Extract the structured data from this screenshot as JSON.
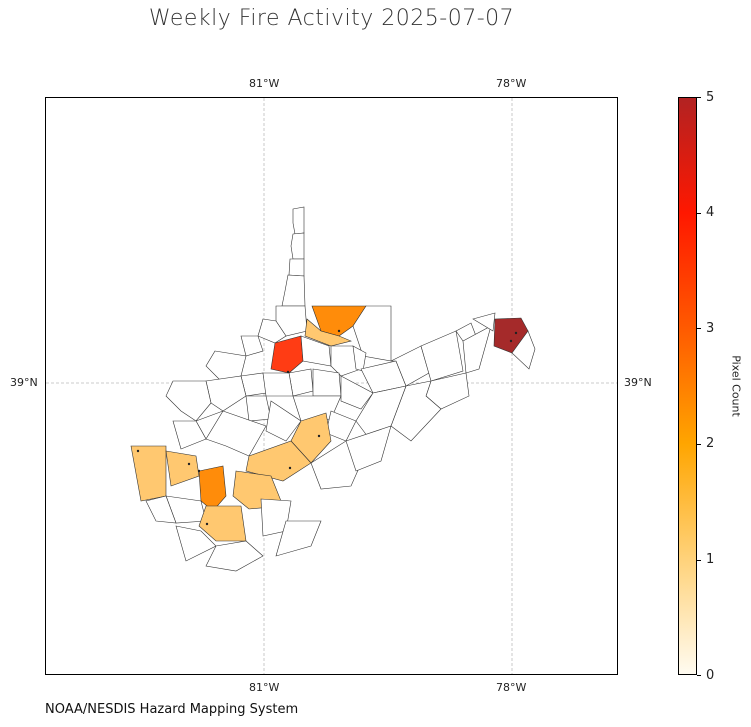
{
  "title": "Weekly Fire Activity 2025-07-07",
  "source": "NOAA/NESDIS Hazard Mapping System",
  "axes": {
    "lon_ticks": [
      {
        "label": "81°W",
        "lon": -81
      },
      {
        "label": "78°W",
        "lon": -78
      }
    ],
    "lat_ticks": [
      {
        "label": "39°N",
        "lat": 39
      }
    ],
    "gridlines": true
  },
  "colorbar": {
    "label": "Pixel Count",
    "min": 0,
    "max": 5,
    "ticks": [
      "0",
      "1",
      "2",
      "3",
      "4",
      "5"
    ],
    "colors": [
      "#fffbf0",
      "#ffd27a",
      "#ffa500",
      "#ff5a00",
      "#ff1800",
      "#b22222"
    ]
  },
  "chart_data": {
    "type": "choropleth",
    "region": "West Virginia counties",
    "value_name": "Pixel Count",
    "highlighted_counties": [
      {
        "value": 5
      },
      {
        "value": 3
      },
      {
        "value": 2
      },
      {
        "value": 2
      },
      {
        "value": 1
      },
      {
        "value": 1
      },
      {
        "value": 1
      },
      {
        "value": 1
      },
      {
        "value": 1
      },
      {
        "value": 1
      },
      {
        "value": 1
      }
    ]
  }
}
